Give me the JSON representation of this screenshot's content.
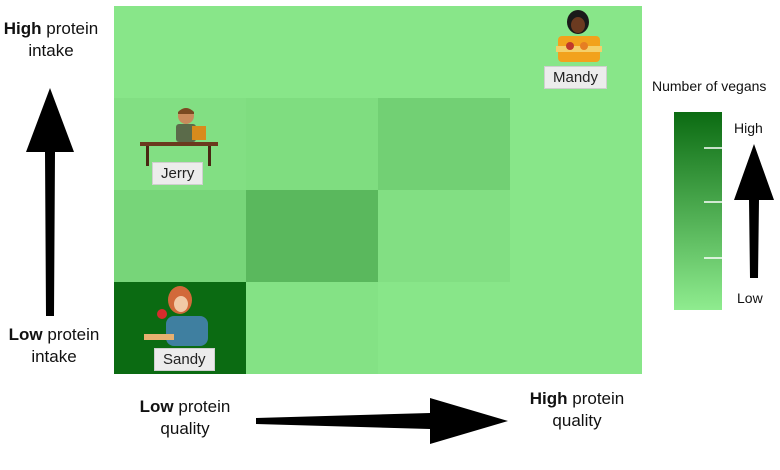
{
  "y_axis": {
    "top": {
      "bold": "High",
      "rest": " protein",
      "line2": "intake"
    },
    "bottom": {
      "bold": "Low",
      "rest": " protein",
      "line2": "intake"
    }
  },
  "x_axis": {
    "left": {
      "bold": "Low",
      "rest": " protein",
      "line2": "quality"
    },
    "right": {
      "bold": "High",
      "rest": " protein",
      "line2": "quality"
    }
  },
  "legend": {
    "title": "Number of vegans",
    "high": "High",
    "low": "Low",
    "color_high": "#0b6b12",
    "color_low": "#8fec8f"
  },
  "grid": {
    "rows": 4,
    "cols": 4,
    "levels": [
      [
        0.05,
        0.05,
        0.05,
        0.05
      ],
      [
        0.1,
        0.12,
        0.22,
        0.05
      ],
      [
        0.18,
        0.4,
        0.1,
        0.05
      ],
      [
        1.0,
        0.08,
        0.05,
        0.05
      ]
    ]
  },
  "people": [
    {
      "name": "Mandy",
      "row": 0,
      "col": 3
    },
    {
      "name": "Jerry",
      "row": 1,
      "col": 0
    },
    {
      "name": "Sandy",
      "row": 3,
      "col": 0
    }
  ]
}
